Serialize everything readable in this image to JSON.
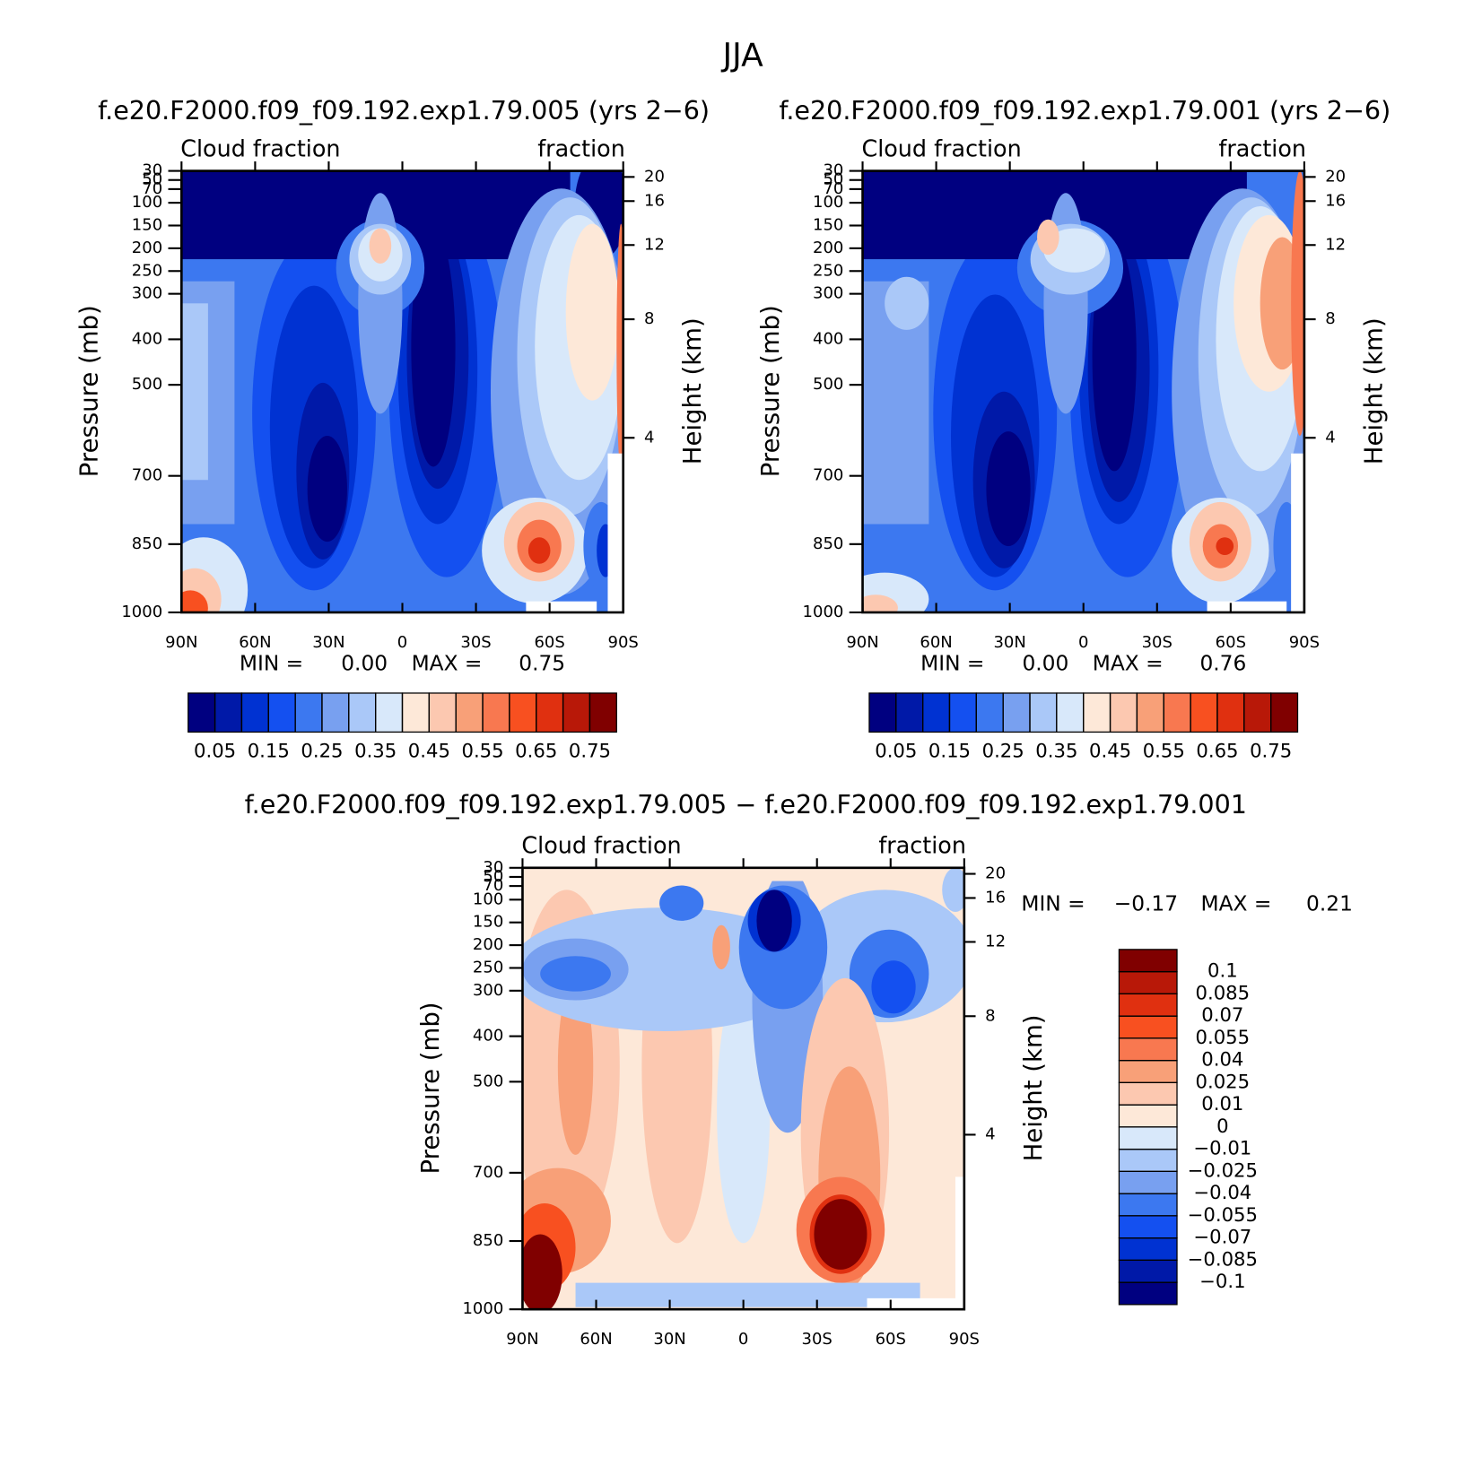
{
  "title": "JJA",
  "chart_data": [
    {
      "type": "contour",
      "title": "f.e20.F2000.f09_f09.192.exp1.79.005 (yrs 2−6)",
      "left_label": "Cloud fraction",
      "right_label": "fraction",
      "ylabel": "Pressure (mb)",
      "y2label": "Height (km)",
      "xlim": [
        90,
        -90
      ],
      "xticks": [
        {
          "value": 90,
          "label": "90N"
        },
        {
          "value": 60,
          "label": "60N"
        },
        {
          "value": 30,
          "label": "30N"
        },
        0,
        {
          "value": -30,
          "label": "30S"
        },
        {
          "value": -60,
          "label": "60S"
        },
        {
          "value": -90,
          "label": "90S"
        }
      ],
      "ylim": [
        1000,
        30
      ],
      "yticks": [
        30,
        50,
        70,
        100,
        150,
        200,
        250,
        300,
        400,
        500,
        700,
        850,
        1000
      ],
      "y2ticks": [
        20,
        16,
        12,
        8,
        4
      ],
      "stats": {
        "labels": [
          "MIN =",
          "MAX ="
        ],
        "values": [
          0,
          0.75
        ],
        "value_labels": [
          "0.00",
          "0.75"
        ]
      },
      "colorbar": {
        "orientation": "horizontal",
        "levels": [
          0.05,
          0.1,
          0.15,
          0.2,
          0.25,
          0.3,
          0.35,
          0.4,
          0.45,
          0.5,
          0.55,
          0.6,
          0.65,
          0.7,
          0.75
        ],
        "ticks": [
          0.05,
          0.15,
          0.25,
          0.35,
          0.45,
          0.55,
          0.65,
          0.75
        ],
        "colors": [
          "#000080",
          "#0019a8",
          "#0032d2",
          "#1450f0",
          "#3c78f0",
          "#78a0f0",
          "#aac8f8",
          "#d8e8fa",
          "#fde8d8",
          "#fcc8b0",
          "#f8a078",
          "#f87850",
          "#f85020",
          "#e03010",
          "#b81808",
          "#800000"
        ]
      }
    },
    {
      "type": "contour",
      "title": "f.e20.F2000.f09_f09.192.exp1.79.001 (yrs 2−6)",
      "left_label": "Cloud fraction",
      "right_label": "fraction",
      "ylabel": "Pressure (mb)",
      "y2label": "Height (km)",
      "xlim": [
        90,
        -90
      ],
      "xticks": [
        {
          "value": 90,
          "label": "90N"
        },
        {
          "value": 60,
          "label": "60N"
        },
        {
          "value": 30,
          "label": "30N"
        },
        0,
        {
          "value": -30,
          "label": "30S"
        },
        {
          "value": -60,
          "label": "60S"
        },
        {
          "value": -90,
          "label": "90S"
        }
      ],
      "ylim": [
        1000,
        30
      ],
      "yticks": [
        30,
        50,
        70,
        100,
        150,
        200,
        250,
        300,
        400,
        500,
        700,
        850,
        1000
      ],
      "y2ticks": [
        20,
        16,
        12,
        8,
        4
      ],
      "stats": {
        "labels": [
          "MIN =",
          "MAX ="
        ],
        "values": [
          0,
          0.76
        ],
        "value_labels": [
          "0.00",
          "0.76"
        ]
      },
      "colorbar": {
        "orientation": "horizontal",
        "levels": [
          0.05,
          0.1,
          0.15,
          0.2,
          0.25,
          0.3,
          0.35,
          0.4,
          0.45,
          0.5,
          0.55,
          0.6,
          0.65,
          0.7,
          0.75
        ],
        "ticks": [
          0.05,
          0.15,
          0.25,
          0.35,
          0.45,
          0.55,
          0.65,
          0.75
        ],
        "colors": [
          "#000080",
          "#0019a8",
          "#0032d2",
          "#1450f0",
          "#3c78f0",
          "#78a0f0",
          "#aac8f8",
          "#d8e8fa",
          "#fde8d8",
          "#fcc8b0",
          "#f8a078",
          "#f87850",
          "#f85020",
          "#e03010",
          "#b81808",
          "#800000"
        ]
      }
    },
    {
      "type": "contour",
      "title": "f.e20.F2000.f09_f09.192.exp1.79.005 − f.e20.F2000.f09_f09.192.exp1.79.001",
      "left_label": "Cloud fraction",
      "right_label": "fraction",
      "ylabel": "Pressure (mb)",
      "y2label": "Height (km)",
      "xlim": [
        90,
        -90
      ],
      "xticks": [
        {
          "value": 90,
          "label": "90N"
        },
        {
          "value": 60,
          "label": "60N"
        },
        {
          "value": 30,
          "label": "30N"
        },
        0,
        {
          "value": -30,
          "label": "30S"
        },
        {
          "value": -60,
          "label": "60S"
        },
        {
          "value": -90,
          "label": "90S"
        }
      ],
      "ylim": [
        1000,
        30
      ],
      "yticks": [
        30,
        50,
        70,
        100,
        150,
        200,
        250,
        300,
        400,
        500,
        700,
        850,
        1000
      ],
      "y2ticks": [
        20,
        16,
        12,
        8,
        4
      ],
      "stats": {
        "labels": [
          "MIN =",
          "MAX ="
        ],
        "values": [
          -0.17,
          0.21
        ],
        "value_labels": [
          "−0.17",
          "0.21"
        ]
      },
      "colorbar": {
        "orientation": "vertical",
        "levels": [
          -0.1,
          -0.085,
          -0.07,
          -0.055,
          -0.04,
          -0.025,
          -0.01,
          0,
          0.01,
          0.025,
          0.04,
          0.055,
          0.07,
          0.085,
          0.1
        ],
        "ticks": [
          {
            "value": -0.1,
            "label": "−0.1"
          },
          {
            "value": -0.085,
            "label": "−0.085"
          },
          {
            "value": -0.07,
            "label": "−0.07"
          },
          {
            "value": -0.055,
            "label": "−0.055"
          },
          {
            "value": -0.04,
            "label": "−0.04"
          },
          {
            "value": -0.025,
            "label": "−0.025"
          },
          {
            "value": -0.01,
            "label": "−0.01"
          },
          0,
          0.01,
          0.025,
          0.04,
          0.055,
          0.07,
          0.085,
          0.1
        ],
        "colors": [
          "#000080",
          "#0019a8",
          "#0032d2",
          "#1450f0",
          "#3c78f0",
          "#78a0f0",
          "#aac8f8",
          "#d8e8fa",
          "#fde8d8",
          "#fcc8b0",
          "#f8a078",
          "#f87850",
          "#f85020",
          "#e03010",
          "#b81808",
          "#800000"
        ]
      }
    }
  ]
}
